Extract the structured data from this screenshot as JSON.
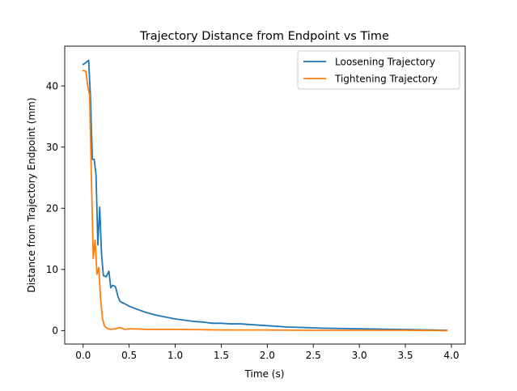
{
  "chart_data": {
    "type": "line",
    "title": "Trajectory Distance from Endpoint vs Time",
    "xlabel": "Time (s)",
    "ylabel": "Distance from Trajectory Endpoint (mm)",
    "xlim": [
      -0.2,
      4.15
    ],
    "ylim": [
      -2.2,
      46.5
    ],
    "xticks": [
      0.0,
      0.5,
      1.0,
      1.5,
      2.0,
      2.5,
      3.0,
      3.5,
      4.0
    ],
    "xtick_labels": [
      "0.0",
      "0.5",
      "1.0",
      "1.5",
      "2.0",
      "2.5",
      "3.0",
      "3.5",
      "4.0"
    ],
    "yticks": [
      0,
      10,
      20,
      30,
      40
    ],
    "ytick_labels": [
      "0",
      "10",
      "20",
      "30",
      "40"
    ],
    "grid": false,
    "legend_position": "top-right",
    "series": [
      {
        "name": "Loosening Trajectory",
        "color": "#1f77b4",
        "x": [
          0.0,
          0.03,
          0.06,
          0.08,
          0.1,
          0.12,
          0.14,
          0.16,
          0.18,
          0.2,
          0.22,
          0.25,
          0.28,
          0.3,
          0.32,
          0.35,
          0.38,
          0.4,
          0.42,
          0.45,
          0.5,
          0.6,
          0.7,
          0.8,
          0.9,
          1.0,
          1.1,
          1.2,
          1.3,
          1.4,
          1.5,
          1.6,
          1.7,
          1.8,
          1.9,
          2.0,
          2.2,
          2.4,
          2.6,
          2.8,
          3.0,
          3.2,
          3.4,
          3.6,
          3.8,
          3.95
        ],
        "y": [
          43.5,
          43.8,
          44.2,
          38.0,
          28.0,
          28.0,
          25.5,
          14.0,
          20.2,
          12.5,
          9.0,
          8.8,
          9.7,
          7.0,
          7.4,
          7.2,
          5.5,
          4.8,
          4.6,
          4.4,
          4.0,
          3.4,
          2.9,
          2.5,
          2.2,
          1.9,
          1.7,
          1.5,
          1.4,
          1.2,
          1.2,
          1.1,
          1.1,
          1.0,
          0.9,
          0.8,
          0.6,
          0.5,
          0.4,
          0.35,
          0.3,
          0.25,
          0.2,
          0.15,
          0.1,
          0.05
        ]
      },
      {
        "name": "Tightening Trajectory",
        "color": "#ff7f0e",
        "x": [
          0.0,
          0.03,
          0.05,
          0.07,
          0.09,
          0.11,
          0.13,
          0.15,
          0.17,
          0.19,
          0.21,
          0.23,
          0.25,
          0.27,
          0.3,
          0.35,
          0.4,
          0.45,
          0.5,
          0.7,
          1.0,
          1.3,
          1.5,
          2.0,
          2.5,
          3.0,
          3.5,
          3.95
        ],
        "y": [
          42.5,
          42.4,
          40.0,
          38.5,
          25.0,
          11.8,
          14.8,
          9.2,
          10.3,
          5.0,
          2.0,
          0.8,
          0.5,
          0.3,
          0.2,
          0.3,
          0.5,
          0.2,
          0.3,
          0.2,
          0.2,
          0.15,
          0.1,
          0.1,
          0.05,
          0.05,
          0.05,
          0.0
        ]
      }
    ]
  }
}
